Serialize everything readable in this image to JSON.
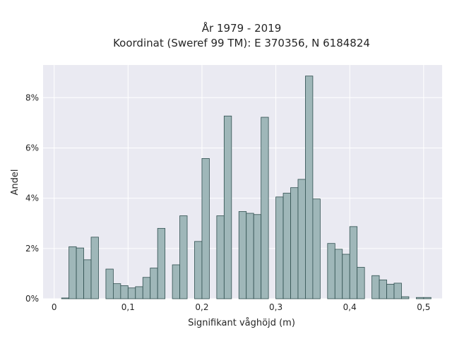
{
  "chart_data": {
    "type": "bar",
    "title_lines": [
      "År 1979 - 2019",
      "Koordinat (Sweref 99 TM): E 370356, N 6184824"
    ],
    "xlabel": "Signifikant våghöjd (m)",
    "ylabel": "Andel",
    "xlim": [
      -0.015,
      0.525
    ],
    "ylim": [
      0,
      9.3
    ],
    "grid": true,
    "x_ticks": [
      {
        "value": 0,
        "label": "0"
      },
      {
        "value": 0.1,
        "label": "0,1"
      },
      {
        "value": 0.2,
        "label": "0,2"
      },
      {
        "value": 0.3,
        "label": "0,3"
      },
      {
        "value": 0.4,
        "label": "0,4"
      },
      {
        "value": 0.5,
        "label": "0,5"
      }
    ],
    "y_ticks": [
      {
        "value": 0,
        "label": "0%"
      },
      {
        "value": 2,
        "label": "2%"
      },
      {
        "value": 4,
        "label": "4%"
      },
      {
        "value": 6,
        "label": "6%"
      },
      {
        "value": 8,
        "label": "8%"
      }
    ],
    "bin_width": 0.01,
    "bins_start": [
      0.01,
      0.02,
      0.03,
      0.04,
      0.05,
      0.06,
      0.07,
      0.08,
      0.09,
      0.1,
      0.11,
      0.12,
      0.13,
      0.14,
      0.15,
      0.16,
      0.17,
      0.18,
      0.19,
      0.2,
      0.21,
      0.22,
      0.23,
      0.24,
      0.25,
      0.26,
      0.27,
      0.28,
      0.29,
      0.3,
      0.31,
      0.32,
      0.33,
      0.34,
      0.35,
      0.36,
      0.37,
      0.38,
      0.39,
      0.4,
      0.41,
      0.42,
      0.43,
      0.44,
      0.45,
      0.46,
      0.47,
      0.48,
      0.49,
      0.5
    ],
    "values": [
      0.03,
      2.07,
      2.02,
      1.55,
      2.45,
      0,
      1.18,
      0.6,
      0.52,
      0.43,
      0.48,
      0.85,
      1.22,
      2.8,
      0,
      1.35,
      3.3,
      0,
      2.28,
      5.58,
      0,
      3.3,
      7.27,
      0,
      3.47,
      3.4,
      3.35,
      7.22,
      0,
      4.05,
      4.2,
      4.42,
      4.75,
      8.86,
      3.97,
      0,
      2.2,
      1.97,
      1.77,
      2.87,
      1.25,
      0,
      0.92,
      0.75,
      0.58,
      0.62,
      0.08,
      0,
      0.05,
      0.05
    ],
    "colors": {
      "bar_fill": "#9fb7b9",
      "bar_edge": "#2f4f4f",
      "plot_background": "#eaeaf2",
      "grid": "#ffffff"
    }
  }
}
